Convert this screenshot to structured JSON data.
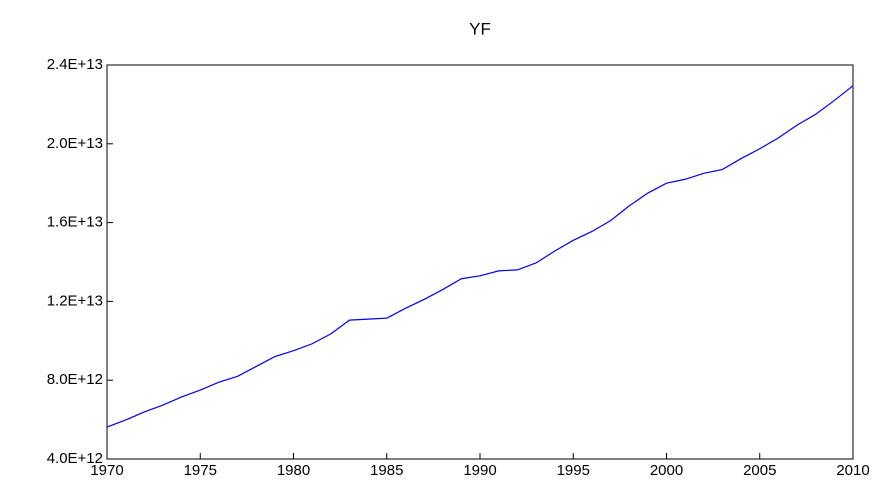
{
  "chart_data": {
    "type": "line",
    "title": "YF",
    "x": [
      1970,
      1971,
      1972,
      1973,
      1974,
      1975,
      1976,
      1977,
      1978,
      1979,
      1980,
      1981,
      1982,
      1983,
      1984,
      1985,
      1986,
      1987,
      1988,
      1989,
      1990,
      1991,
      1992,
      1993,
      1994,
      1995,
      1996,
      1997,
      1998,
      1999,
      2000,
      2001,
      2002,
      2003,
      2004,
      2005,
      2006,
      2007,
      2008,
      2009,
      2010
    ],
    "series": [
      {
        "name": "YF",
        "color": "#0000ff",
        "values": [
          5620000000000.0,
          5980000000000.0,
          6390000000000.0,
          6740000000000.0,
          7150000000000.0,
          7500000000000.0,
          7900000000000.0,
          8200000000000.0,
          8700000000000.0,
          9200000000000.0,
          9500000000000.0,
          9850000000000.0,
          10350000000000.0,
          11050000000000.0,
          11100000000000.0,
          11150000000000.0,
          11650000000000.0,
          12100000000000.0,
          12600000000000.0,
          13150000000000.0,
          13300000000000.0,
          13550000000000.0,
          13600000000000.0,
          13950000000000.0,
          14550000000000.0,
          15100000000000.0,
          15550000000000.0,
          16100000000000.0,
          16850000000000.0,
          17500000000000.0,
          18000000000000.0,
          18200000000000.0,
          18500000000000.0,
          18700000000000.0,
          19250000000000.0,
          19750000000000.0,
          20300000000000.0,
          20950000000000.0,
          21500000000000.0,
          22200000000000.0,
          22950000000000.0
        ]
      }
    ],
    "xlim": [
      1970,
      2010
    ],
    "xticks": [
      1970,
      1975,
      1980,
      1985,
      1990,
      1995,
      2000,
      2005,
      2010
    ],
    "ylim": [
      4000000000000.0,
      24000000000000.0
    ],
    "yticks": [
      {
        "value": 4000000000000.0,
        "label": "4.0E+12"
      },
      {
        "value": 8000000000000.0,
        "label": "8.0E+12"
      },
      {
        "value": 12000000000000.0,
        "label": "1.2E+13"
      },
      {
        "value": 16000000000000.0,
        "label": "1.6E+13"
      },
      {
        "value": 20000000000000.0,
        "label": "2.0E+13"
      },
      {
        "value": 24000000000000.0,
        "label": "2.4E+13"
      }
    ],
    "grid": false
  }
}
